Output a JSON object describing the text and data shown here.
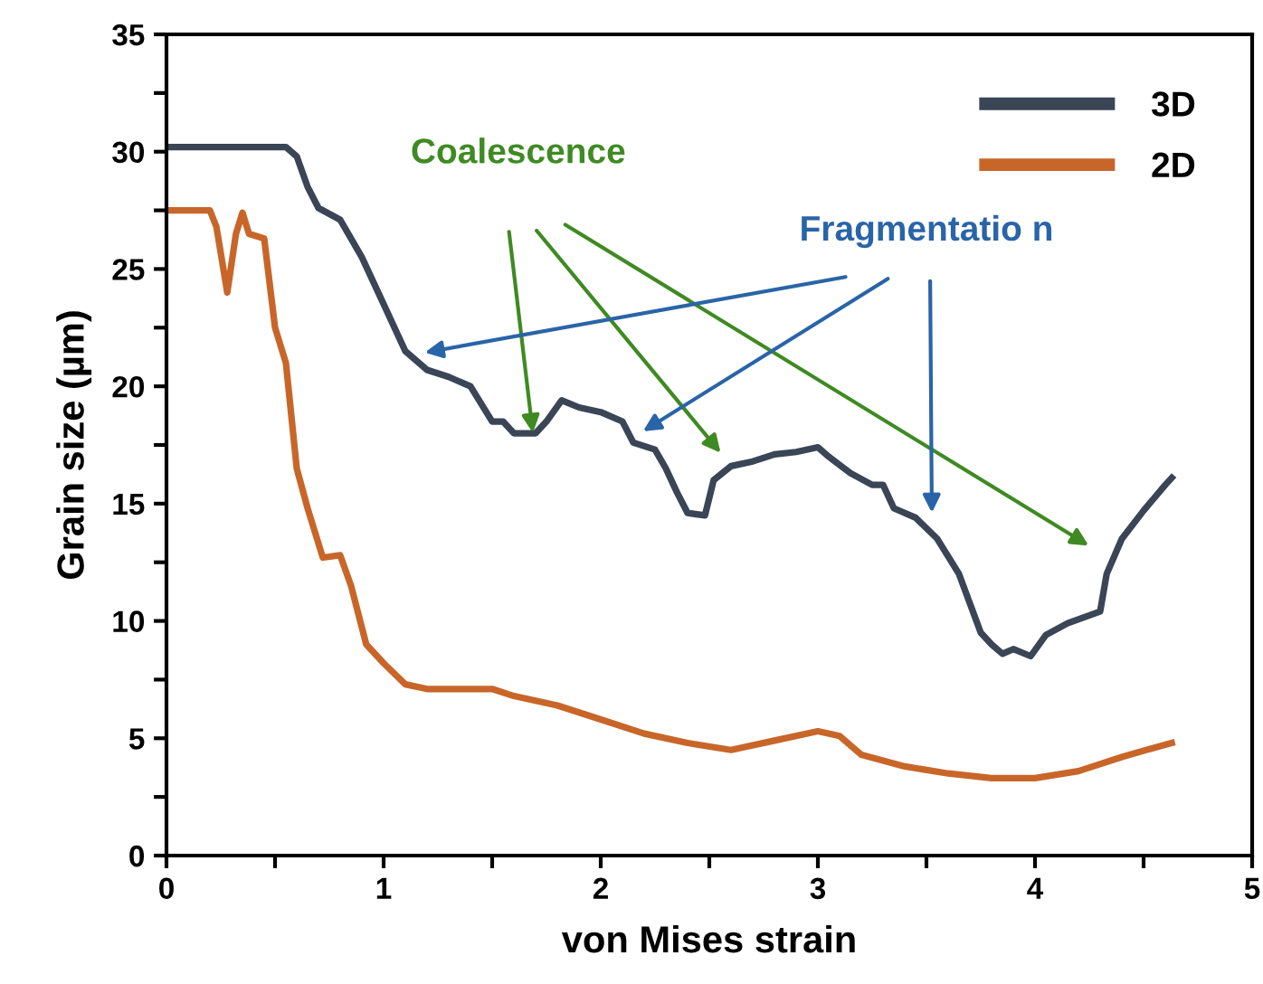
{
  "chart_data": {
    "type": "line",
    "xlabel": "von Mises strain",
    "ylabel": "Grain size (µm)",
    "xlim": [
      0,
      5
    ],
    "ylim": [
      0,
      35
    ],
    "xticks": [
      0,
      {
        "value": 0.5,
        "label": null
      },
      1,
      {
        "value": 1.5,
        "label": null
      },
      2,
      {
        "value": 2.5,
        "label": null
      },
      3,
      {
        "value": 3.5,
        "label": null
      },
      4,
      {
        "value": 4.5,
        "label": null
      },
      5
    ],
    "yticks": [
      0,
      {
        "value": 2.5,
        "label": null
      },
      5,
      {
        "value": 7.5,
        "label": null
      },
      10,
      {
        "value": 12.5,
        "label": null
      },
      15,
      {
        "value": 17.5,
        "label": null
      },
      20,
      {
        "value": 22.5,
        "label": null
      },
      25,
      {
        "value": 27.5,
        "label": null
      },
      30,
      {
        "value": 32.5,
        "label": null
      },
      35
    ],
    "grid": false,
    "legend": "top right",
    "marker": "none",
    "line_style": "solid",
    "annotations": [
      "Coalescence",
      "Fragmentatio n"
    ],
    "series": [
      {
        "name": "3D",
        "color": "#3a4556",
        "x": [
          0,
          0.55,
          0.6,
          0.65,
          0.7,
          0.8,
          0.9,
          1.0,
          1.1,
          1.2,
          1.3,
          1.4,
          1.5,
          1.55,
          1.6,
          1.7,
          1.75,
          1.82,
          1.9,
          2.0,
          2.1,
          2.15,
          2.25,
          2.3,
          2.35,
          2.4,
          2.48,
          2.52,
          2.6,
          2.7,
          2.8,
          2.9,
          3.0,
          3.05,
          3.15,
          3.25,
          3.3,
          3.35,
          3.45,
          3.55,
          3.65,
          3.75,
          3.8,
          3.85,
          3.9,
          3.98,
          4.05,
          4.15,
          4.3,
          4.33,
          4.4,
          4.5,
          4.6,
          4.63
        ],
        "values": [
          30.2,
          30.2,
          29.8,
          28.5,
          27.6,
          27.1,
          25.5,
          23.5,
          21.5,
          20.7,
          20.4,
          20,
          18.5,
          18.5,
          18,
          18,
          18.5,
          19.4,
          19.1,
          18.9,
          18.5,
          17.6,
          17.3,
          16.5,
          15.5,
          14.6,
          14.5,
          16,
          16.6,
          16.8,
          17.1,
          17.2,
          17.4,
          17.0,
          16.3,
          15.8,
          15.8,
          14.8,
          14.4,
          13.5,
          12.0,
          9.5,
          9.0,
          8.6,
          8.8,
          8.5,
          9.4,
          9.9,
          10.4,
          12,
          13.5,
          14.7,
          15.8,
          16.1
        ]
      },
      {
        "name": "2D",
        "color": "#c8662a",
        "x": [
          0,
          0.2,
          0.23,
          0.28,
          0.32,
          0.35,
          0.38,
          0.45,
          0.5,
          0.55,
          0.6,
          0.65,
          0.72,
          0.8,
          0.85,
          0.92,
          1.0,
          1.1,
          1.2,
          1.3,
          1.5,
          1.6,
          1.8,
          2.0,
          2.2,
          2.4,
          2.6,
          2.8,
          3.0,
          3.1,
          3.2,
          3.4,
          3.6,
          3.8,
          4.0,
          4.2,
          4.4,
          4.55,
          4.63
        ],
        "values": [
          27.5,
          27.5,
          26.8,
          24,
          26.5,
          27.4,
          26.5,
          26.3,
          22.5,
          21,
          16.5,
          14.8,
          12.7,
          12.8,
          11.5,
          9,
          8.2,
          7.3,
          7.1,
          7.1,
          7.1,
          6.8,
          6.4,
          5.8,
          5.2,
          4.8,
          4.5,
          4.9,
          5.3,
          5.1,
          4.3,
          3.8,
          3.5,
          3.3,
          3.3,
          3.6,
          4.2,
          4.6,
          4.8
        ]
      }
    ]
  }
}
